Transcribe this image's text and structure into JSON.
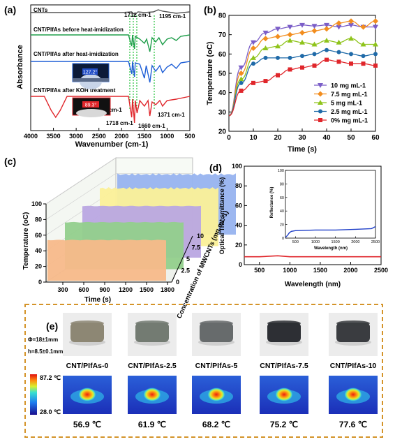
{
  "panels": {
    "a": "(a)",
    "b": "(b)",
    "c": "(c)",
    "d": "(d)",
    "e": "(e)"
  },
  "chart_data": [
    {
      "panel": "a",
      "type": "line",
      "xlabel": "Wavenumber (cm-1)",
      "ylabel": "Absorbance",
      "xlim": [
        4000,
        500
      ],
      "x_reversed": true,
      "x_ticks": [
        "4000",
        "3500",
        "3000",
        "2500",
        "2000",
        "1500",
        "1000",
        "500"
      ],
      "series": [
        {
          "name": "CNTs",
          "color": "#555555"
        },
        {
          "name": "CNT/PIfAs before heat-imidization",
          "color": "#1e9e4a"
        },
        {
          "name": "CNT/PIfAs after heat-imidization",
          "color": "#1f5fd6"
        },
        {
          "name": "CNT/PIfAs after KOH treatment",
          "color": "#e0262b"
        }
      ],
      "annotations": [
        {
          "text": "1712 cm-1",
          "x": 1712
        },
        {
          "text": "1195 cm-1",
          "x": 1195
        },
        {
          "text": "1775 cm-1",
          "x": 1775
        },
        {
          "text": "1718 cm-1",
          "x": 1718
        },
        {
          "text": "1660 cm-1",
          "x": 1660
        },
        {
          "text": "1371 cm-1",
          "x": 1371
        }
      ],
      "contact_angles": [
        "127.2°",
        "89.3°"
      ]
    },
    {
      "panel": "b",
      "type": "line",
      "xlabel": "Time (s)",
      "ylabel": "Temperature (oC)",
      "xlim": [
        0,
        60
      ],
      "ylim": [
        20,
        80
      ],
      "x_ticks": [
        "0",
        "10",
        "20",
        "30",
        "40",
        "50",
        "60"
      ],
      "y_ticks": [
        "20",
        "30",
        "40",
        "50",
        "60",
        "70",
        "80"
      ],
      "legend": "bottom-right",
      "x": [
        0,
        5,
        10,
        15,
        20,
        25,
        30,
        35,
        40,
        45,
        50,
        55,
        60
      ],
      "series": [
        {
          "name": "10 mg mL-1",
          "color": "#7b5ec8",
          "marker": "triangle-down",
          "values": [
            28,
            53,
            66,
            71,
            73,
            74,
            75,
            74.5,
            75,
            74,
            75,
            74,
            74
          ]
        },
        {
          "name": "7.5 mg mL-1",
          "color": "#f28d1e",
          "marker": "diamond",
          "values": [
            28,
            50,
            63,
            68,
            69,
            70,
            71,
            72,
            73,
            76,
            77,
            74,
            77
          ]
        },
        {
          "name": "5 mg mL-1",
          "color": "#8fc41b",
          "marker": "triangle-up",
          "values": [
            28,
            47,
            58,
            63,
            64,
            67,
            66,
            65,
            67,
            66,
            68,
            65,
            65
          ]
        },
        {
          "name": "2.5 mg mL-1",
          "color": "#1f6aa8",
          "marker": "circle",
          "values": [
            28,
            45,
            55,
            58,
            58,
            58,
            59,
            60,
            62,
            61,
            60,
            59,
            60
          ]
        },
        {
          "name": "0% mg mL-1",
          "color": "#e0262b",
          "marker": "square",
          "values": [
            28,
            41,
            45,
            46,
            49,
            52,
            53,
            54,
            57,
            56,
            55,
            55,
            54
          ]
        }
      ]
    },
    {
      "panel": "c",
      "type": "area",
      "xlabel": "Time (s)",
      "ylabel": "Temperature (oC)",
      "zlabel": "Concentration of MWCNTs (mg mL-1)",
      "x_ticks": [
        "300",
        "600",
        "900",
        "1200",
        "1500",
        "1800"
      ],
      "y_ticks": [
        "0",
        "20",
        "40",
        "60",
        "80",
        "100"
      ],
      "z_ticks": [
        "0",
        "2.5",
        "5",
        "7.5",
        "10"
      ],
      "series": [
        {
          "name": "0",
          "color": "#f7b98a",
          "value": 52
        },
        {
          "name": "2.5",
          "color": "#92cf8c",
          "value": 60
        },
        {
          "name": "5",
          "color": "#b9a6e2",
          "value": 66
        },
        {
          "name": "7.5",
          "color": "#fbf098",
          "value": 74
        },
        {
          "name": "10",
          "color": "#97b3ef",
          "value": 77
        }
      ]
    },
    {
      "panel": "d",
      "type": "line",
      "xlabel": "Wavelength (nm)",
      "ylabel": "Optical Transmittance (%)",
      "xlim": [
        250,
        2500
      ],
      "ylim": [
        0,
        100
      ],
      "x_ticks": [
        "500",
        "1000",
        "1500",
        "2000",
        "2500"
      ],
      "y_ticks": [
        "0",
        "20",
        "40",
        "60",
        "80",
        "100"
      ],
      "series": [
        {
          "name": "transmittance",
          "color": "#e0262b",
          "values_x": [
            250,
            500,
            800,
            1000,
            1500,
            2000,
            2500
          ],
          "values_y": [
            8,
            8,
            9,
            8,
            8,
            8,
            8
          ]
        }
      ],
      "inset": {
        "xlabel": "Wavelength (nm)",
        "ylabel": "Reflectance (%)",
        "x_ticks": [
          "500",
          "1000",
          "1500",
          "2000",
          "2500"
        ],
        "y_ticks": [
          "0",
          "20",
          "40",
          "60",
          "80",
          "100"
        ],
        "series": [
          {
            "name": "reflectance",
            "color": "#1f3fc8",
            "values_x": [
              250,
              300,
              350,
              400,
              500,
              1000,
              1500,
              2000,
              2400,
              2500
            ],
            "values_y": [
              1,
              4,
              8,
              10,
              11,
              12,
              12,
              13,
              14,
              17
            ]
          }
        ]
      }
    }
  ],
  "panel_e": {
    "dimensions": [
      "Φ=18±1mm",
      "h=8.5±0.1mm"
    ],
    "samples": [
      "CNT/PIfAs-0",
      "CNT/PIfAs-2.5",
      "CNT/PIfAs-5",
      "CNT/PIfAs-7.5",
      "CNT/PIfAs-10"
    ],
    "temperatures": [
      "56.9 ℃",
      "61.9 ℃",
      "68.2 ℃",
      "75.2 ℃",
      "77.6 ℃"
    ],
    "scale_max": "87.2 ℃",
    "scale_min": "28.0 ℃",
    "sample_colors": [
      "#8d8774",
      "#737b72",
      "#676b6c",
      "#2d2f34",
      "#3a3c40"
    ]
  }
}
